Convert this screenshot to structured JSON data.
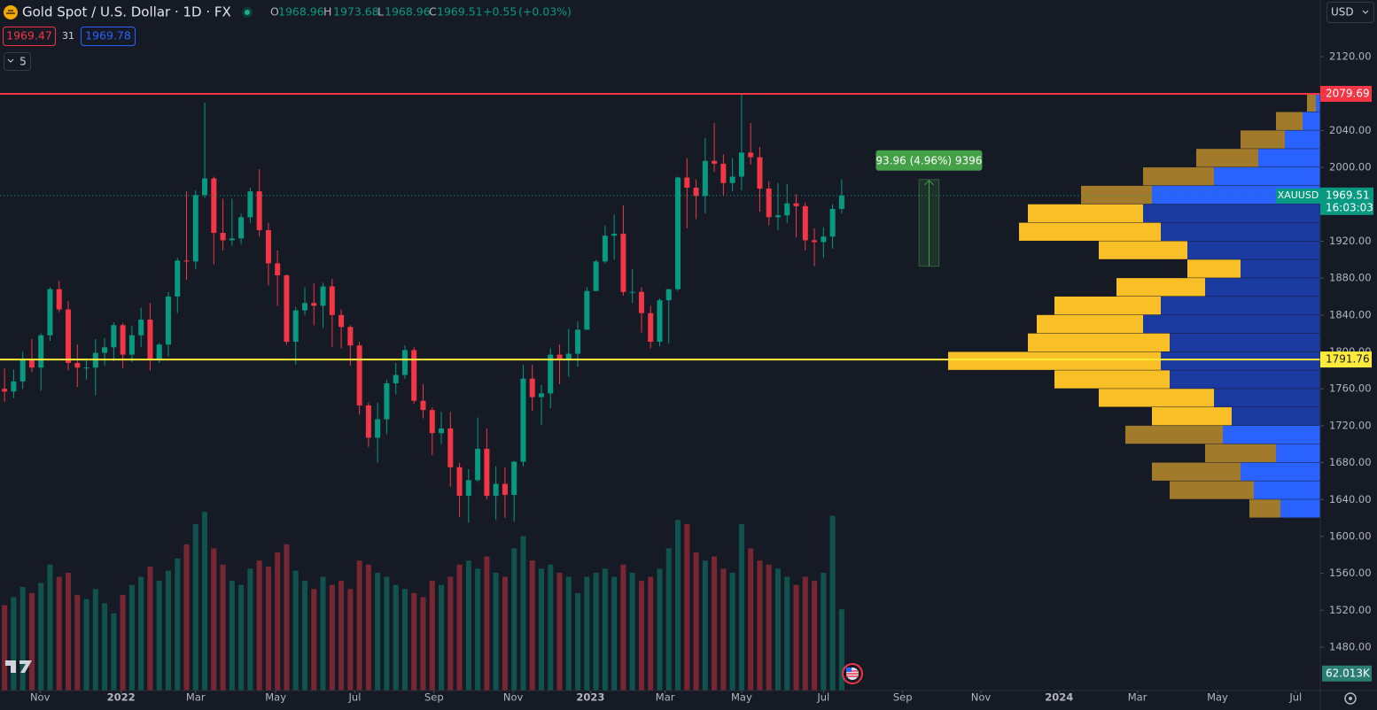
{
  "header": {
    "title": "Gold Spot / U.S. Dollar · 1D · FX",
    "ohlc": [
      {
        "key": "O",
        "value": 1968.96
      },
      {
        "key": "H",
        "value": 1973.68
      },
      {
        "key": "L",
        "value": 1968.96
      },
      {
        "key": "C",
        "value": 1969.51
      }
    ],
    "change": {
      "value": 0.55,
      "label": "+0.55"
    },
    "change_pct": {
      "value": 0.03,
      "label": "(+0.03%)"
    },
    "bid": 1969.47,
    "spread": 31,
    "ask": 1969.78,
    "indicators": 5,
    "currency": "USD"
  },
  "chart_data": {
    "type": "candlestick",
    "x": [
      0,
      1,
      2,
      3,
      4,
      5,
      6,
      7,
      8,
      9,
      10,
      11,
      12,
      13,
      14,
      15,
      16,
      17,
      18,
      19,
      20,
      21,
      22,
      23,
      24,
      25,
      26,
      27,
      28,
      29,
      30,
      31,
      32,
      33,
      34,
      35,
      36,
      37,
      38,
      39,
      40,
      41,
      42,
      43,
      44,
      45,
      46,
      47,
      48,
      49,
      50,
      51,
      52,
      53,
      54,
      55,
      56,
      57,
      58,
      59,
      60,
      61,
      62,
      63,
      64,
      65,
      66,
      67,
      68,
      69,
      70,
      71,
      72,
      73,
      74,
      75,
      76,
      77,
      78,
      79,
      80,
      81,
      82,
      83,
      84,
      85,
      86,
      87,
      88,
      89,
      90,
      91,
      92
    ],
    "xlim": [
      -0.5,
      144.6
    ],
    "xticks": [
      {
        "value": 3.9,
        "label": "Nov"
      },
      {
        "value": 12.8,
        "label": "2022"
      },
      {
        "value": 21.0,
        "label": "Mar"
      },
      {
        "value": 29.8,
        "label": "May"
      },
      {
        "value": 38.5,
        "label": "Jul"
      },
      {
        "value": 47.2,
        "label": "Sep"
      },
      {
        "value": 55.9,
        "label": "Nov"
      },
      {
        "value": 64.4,
        "label": "2023"
      },
      {
        "value": 72.6,
        "label": "Mar"
      },
      {
        "value": 81.0,
        "label": "May"
      },
      {
        "value": 90.0,
        "label": "Jul"
      },
      {
        "value": 98.7,
        "label": "Sep"
      },
      {
        "value": 107.3,
        "label": "Nov"
      },
      {
        "value": 115.9,
        "label": "2024"
      },
      {
        "value": 124.5,
        "label": "Mar"
      },
      {
        "value": 133.3,
        "label": "May"
      },
      {
        "value": 141.9,
        "label": "Jul"
      }
    ],
    "ylim": [
      1433,
      2181.4
    ],
    "yticks": [
      {
        "value": 2120,
        "label": "2120.00"
      },
      {
        "value": 2040,
        "label": "2040.00"
      },
      {
        "value": 2000,
        "label": "2000.00"
      },
      {
        "value": 1920,
        "label": "1920.00"
      },
      {
        "value": 1880,
        "label": "1880.00"
      },
      {
        "value": 1840,
        "label": "1840.00"
      },
      {
        "value": 1800,
        "label": "1800.00"
      },
      {
        "value": 1760,
        "label": "1760.00"
      },
      {
        "value": 1720,
        "label": "1720.00"
      },
      {
        "value": 1680,
        "label": "1680.00"
      },
      {
        "value": 1640,
        "label": "1640.00"
      },
      {
        "value": 1600,
        "label": "1600.00"
      },
      {
        "value": 1560,
        "label": "1560.00"
      },
      {
        "value": 1520,
        "label": "1520.00"
      },
      {
        "value": 1480,
        "label": "1480.00"
      }
    ],
    "grid": false,
    "y2lim": [
      0,
      3400
    ],
    "series": [
      {
        "name": "XAUUSD",
        "up_color": "#089981",
        "down_color": "#f23645",
        "values": [
          [
            1760,
            1782,
            1746,
            1757
          ],
          [
            1757,
            1781,
            1750,
            1768
          ],
          [
            1768,
            1800,
            1760,
            1792
          ],
          [
            1792,
            1814,
            1778,
            1783
          ],
          [
            1783,
            1820,
            1758,
            1818
          ],
          [
            1818,
            1870,
            1812,
            1868
          ],
          [
            1868,
            1877,
            1843,
            1846
          ],
          [
            1846,
            1855,
            1780,
            1788
          ],
          [
            1788,
            1808,
            1762,
            1783
          ],
          [
            1783,
            1793,
            1770,
            1783
          ],
          [
            1783,
            1814,
            1753,
            1799
          ],
          [
            1799,
            1815,
            1785,
            1805
          ],
          [
            1805,
            1832,
            1790,
            1829
          ],
          [
            1829,
            1831,
            1782,
            1797
          ],
          [
            1797,
            1828,
            1789,
            1818
          ],
          [
            1818,
            1848,
            1805,
            1835
          ],
          [
            1835,
            1853,
            1780,
            1792
          ],
          [
            1792,
            1810,
            1788,
            1808
          ],
          [
            1808,
            1865,
            1795,
            1860
          ],
          [
            1860,
            1902,
            1842,
            1899
          ],
          [
            1899,
            1974,
            1878,
            1898
          ],
          [
            1898,
            1975,
            1890,
            1970
          ],
          [
            1970,
            2070,
            1967,
            1988
          ],
          [
            1988,
            1990,
            1895,
            1929
          ],
          [
            1929,
            1966,
            1910,
            1921
          ],
          [
            1921,
            1966,
            1915,
            1923
          ],
          [
            1923,
            1950,
            1917,
            1946
          ],
          [
            1946,
            1978,
            1940,
            1974
          ],
          [
            1974,
            1998,
            1925,
            1932
          ],
          [
            1932,
            1940,
            1872,
            1896
          ],
          [
            1896,
            1910,
            1850,
            1883
          ],
          [
            1883,
            1884,
            1808,
            1811
          ],
          [
            1811,
            1849,
            1786,
            1845
          ],
          [
            1845,
            1870,
            1840,
            1853
          ],
          [
            1853,
            1874,
            1829,
            1850
          ],
          [
            1850,
            1875,
            1826,
            1871
          ],
          [
            1871,
            1879,
            1805,
            1840
          ],
          [
            1840,
            1846,
            1804,
            1827
          ],
          [
            1827,
            1829,
            1785,
            1807
          ],
          [
            1807,
            1811,
            1732,
            1742
          ],
          [
            1742,
            1745,
            1697,
            1707
          ],
          [
            1707,
            1745,
            1680,
            1727
          ],
          [
            1727,
            1770,
            1711,
            1766
          ],
          [
            1766,
            1788,
            1754,
            1775
          ],
          [
            1775,
            1807,
            1771,
            1802
          ],
          [
            1802,
            1805,
            1744,
            1747
          ],
          [
            1747,
            1765,
            1728,
            1737
          ],
          [
            1737,
            1740,
            1688,
            1712
          ],
          [
            1712,
            1735,
            1700,
            1717
          ],
          [
            1717,
            1735,
            1654,
            1675
          ],
          [
            1675,
            1680,
            1621,
            1644
          ],
          [
            1644,
            1673,
            1615,
            1661
          ],
          [
            1661,
            1729,
            1659,
            1695
          ],
          [
            1695,
            1717,
            1640,
            1644
          ],
          [
            1644,
            1676,
            1618,
            1657
          ],
          [
            1657,
            1675,
            1620,
            1645
          ],
          [
            1645,
            1682,
            1616,
            1681
          ],
          [
            1681,
            1786,
            1676,
            1771
          ],
          [
            1771,
            1786,
            1736,
            1751
          ],
          [
            1751,
            1764,
            1721,
            1755
          ],
          [
            1755,
            1804,
            1739,
            1797
          ],
          [
            1797,
            1808,
            1765,
            1792
          ],
          [
            1792,
            1825,
            1773,
            1798
          ],
          [
            1798,
            1833,
            1784,
            1824
          ],
          [
            1824,
            1870,
            1824,
            1866
          ],
          [
            1866,
            1900,
            1866,
            1898
          ],
          [
            1898,
            1937,
            1896,
            1926
          ],
          [
            1926,
            1949,
            1900,
            1928
          ],
          [
            1928,
            1959,
            1861,
            1865
          ],
          [
            1865,
            1890,
            1853,
            1865
          ],
          [
            1865,
            1870,
            1821,
            1842
          ],
          [
            1842,
            1850,
            1804,
            1811
          ],
          [
            1811,
            1858,
            1806,
            1856
          ],
          [
            1856,
            1868,
            1809,
            1868
          ],
          [
            1868,
            1990,
            1866,
            1989
          ],
          [
            1989,
            2010,
            1934,
            1978
          ],
          [
            1978,
            1987,
            1944,
            1969
          ],
          [
            1969,
            2032,
            1950,
            2007
          ],
          [
            2007,
            2048,
            1995,
            2004
          ],
          [
            2004,
            2014,
            1969,
            1983
          ],
          [
            1983,
            2010,
            1974,
            1990
          ],
          [
            1990,
            2079,
            1975,
            2016
          ],
          [
            2016,
            2048,
            2003,
            2011
          ],
          [
            2011,
            2022,
            1952,
            1977
          ],
          [
            1977,
            1985,
            1937,
            1946
          ],
          [
            1946,
            1983,
            1932,
            1948
          ],
          [
            1948,
            1982,
            1940,
            1961
          ],
          [
            1961,
            1971,
            1924,
            1958
          ],
          [
            1958,
            1962,
            1910,
            1921
          ],
          [
            1921,
            1934,
            1893,
            1919
          ],
          [
            1919,
            1935,
            1902,
            1925
          ],
          [
            1925,
            1960,
            1912,
            1955
          ],
          [
            1955,
            1987,
            1950,
            1969.51
          ]
        ]
      },
      {
        "axis": "y2",
        "values": [
          420,
          460,
          510,
          480,
          530,
          620,
          560,
          580,
          470,
          450,
          500,
          430,
          380,
          470,
          520,
          560,
          610,
          540,
          590,
          650,
          720,
          820,
          880,
          700,
          620,
          540,
          520,
          600,
          640,
          610,
          680,
          720,
          590,
          540,
          500,
          560,
          520,
          540,
          500,
          640,
          620,
          580,
          560,
          520,
          500,
          480,
          460,
          540,
          520,
          560,
          620,
          640,
          600,
          660,
          580,
          560,
          700,
          760,
          640,
          600,
          620,
          580,
          560,
          480,
          560,
          580,
          600,
          560,
          620,
          580,
          540,
          560,
          600,
          700,
          840,
          820,
          680,
          640,
          660,
          600,
          580,
          820,
          700,
          640,
          620,
          600,
          560,
          520,
          560,
          540,
          580,
          860,
          400
        ]
      }
    ],
    "last_price": {
      "value": 1969.51,
      "label": "1969.51",
      "name": "XAUUSD",
      "time": "16:03:03",
      "color": "#089981"
    },
    "last_volume": {
      "value": 62.013,
      "label": "62.013K"
    },
    "lines": [
      {
        "value": 2079.69,
        "label": "2079.69",
        "color": "#f23645",
        "text_color": "#ffffff"
      },
      {
        "value": 1791.76,
        "label": "1791.76",
        "color": "#ffeb3b",
        "text_color": "#131722"
      }
    ],
    "measure": {
      "label": "93.96 (4.96%) 9396",
      "from": 1892.86,
      "to": 1986.82,
      "x": [
        100.5,
        102.7
      ],
      "color": "#43a047"
    },
    "volume_profile": {
      "xlim": [
        0,
        430
      ],
      "bin_size": 20,
      "bins": [
        1630,
        1650,
        1670,
        1690,
        1710,
        1730,
        1750,
        1770,
        1790,
        1810,
        1830,
        1850,
        1870,
        1890,
        1910,
        1930,
        1950,
        1970,
        1990,
        2010,
        2030,
        2050,
        2070
      ],
      "up": [
        35,
        95,
        100,
        80,
        110,
        90,
        130,
        130,
        240,
        160,
        120,
        120,
        100,
        60,
        100,
        160,
        130,
        80,
        80,
        70,
        50,
        30,
        10
      ],
      "down": [
        45,
        75,
        90,
        50,
        110,
        100,
        120,
        170,
        180,
        170,
        200,
        180,
        130,
        90,
        150,
        180,
        200,
        190,
        120,
        70,
        40,
        20,
        5
      ],
      "value_area": [
        1730,
        1955
      ],
      "colors": {
        "va_up": "#f9bf27",
        "va_down": "#1a3aa0",
        "out_up": "#a17a2b",
        "out_down": "#2962ff"
      }
    }
  }
}
